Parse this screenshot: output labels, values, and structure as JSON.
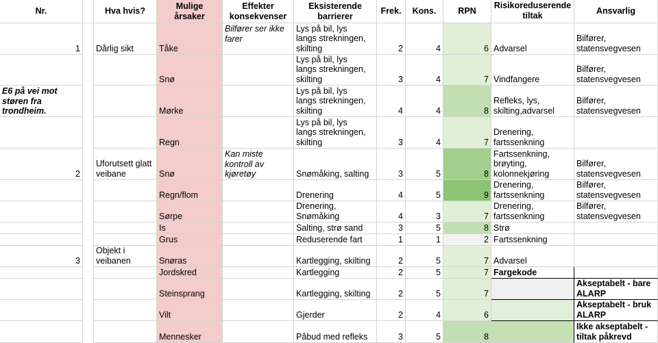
{
  "headers": {
    "nr": "Nr.",
    "hva_hvis": "Hva hvis?",
    "arsaker": "Mulige\nårsaker",
    "effekter": "Effekter\nkonsekvenser",
    "barrierer": "Eksisterende\nbarrierer",
    "frek": "Frek.",
    "kons": "Kons.",
    "rpn": "RPN",
    "tiltak": "Risikoreduserende\ntiltak",
    "ansvarlig": "Ansvarlig"
  },
  "context_label": "E6 på vei mot\nstøren fra\ntrondheim.",
  "groups": [
    {
      "nr": "1",
      "hva_hvis": "Dårlig sikt",
      "effekt": "Bilfører ser ikke\nfarer"
    },
    {
      "nr": "2",
      "hva_hvis": "Uforutsett glatt\nveibane",
      "effekt": "Kan miste\nkontroll av\nkjøretøy"
    },
    {
      "nr": "3",
      "hva_hvis": "Objekt i\nveibanen",
      "effekt": ""
    }
  ],
  "rows": [
    {
      "arsak": "Tåke",
      "barriere": "Lys på bil, lys\nlangs strekningen,\nskilting",
      "frek": "2",
      "kons": "4",
      "rpn": "6",
      "tiltak": "Advarsel",
      "ansvarlig": "Bilfører,\nstatensvegvesen"
    },
    {
      "arsak": "Snø",
      "barriere": "Lys på bil, lys\nlangs strekningen,\nskilting",
      "frek": "3",
      "kons": "4",
      "rpn": "7",
      "tiltak": "Vindfangere",
      "ansvarlig": "Bilfører,\nstatensvegvesen"
    },
    {
      "arsak": "Mørke",
      "barriere": "Lys på bil, lys\nlangs strekningen,\nskilting",
      "frek": "4",
      "kons": "4",
      "rpn": "8",
      "tiltak": "Refleks, lys,\nskilting,advarsel",
      "ansvarlig": "Bilfører,\nstatensvegvesen"
    },
    {
      "arsak": "Regn",
      "barriere": "Lys på bil, lys\nlangs strekningen,\nskilting",
      "frek": "3",
      "kons": "4",
      "rpn": "7",
      "tiltak": "Drenering,\nfartssenkning",
      "ansvarlig": ""
    },
    {
      "arsak": "Snø",
      "barriere": "Snømåking, salting",
      "frek": "3",
      "kons": "5",
      "rpn": "8",
      "tiltak": "Fartssenkning,\nbrøyting,\nkolonnekjøring",
      "ansvarlig": "Bilfører,\nstatensvegvesen"
    },
    {
      "arsak": "Regn/flom",
      "barriere": "Drenering",
      "frek": "4",
      "kons": "5",
      "rpn": "9",
      "tiltak": "Drenering,\nfartssenkning",
      "ansvarlig": "Bilfører,\nstatensvegvesen"
    },
    {
      "arsak": "Sørpe",
      "barriere": "Drenering,\nSnømåking",
      "frek": "4",
      "kons": "3",
      "rpn": "7",
      "tiltak": "Drenering,\nfartssenkning",
      "ansvarlig": "Bilfører,\nstatensvegvesen"
    },
    {
      "arsak": "Is",
      "barriere": "Salting, strø sand",
      "frek": "3",
      "kons": "5",
      "rpn": "8",
      "tiltak": "Strø",
      "ansvarlig": ""
    },
    {
      "arsak": "Grus",
      "barriere": "Reduserende fart",
      "frek": "1",
      "kons": "1",
      "rpn": "2",
      "tiltak": "Fartssenkning",
      "ansvarlig": ""
    },
    {
      "arsak": "Snøras",
      "barriere": "Kartlegging, skilting",
      "frek": "2",
      "kons": "5",
      "rpn": "7",
      "tiltak": "Advarsel",
      "ansvarlig": ""
    },
    {
      "arsak": "Jordskred",
      "barriere": "Kartlegging",
      "frek": "2",
      "kons": "5",
      "rpn": "7",
      "tiltak": "Fargekode",
      "ansvarlig": ""
    },
    {
      "arsak": "Steinsprang",
      "barriere": "Kartlegging, skilting",
      "frek": "2",
      "kons": "5",
      "rpn": "7",
      "tiltak": "",
      "ansvarlig": "Akseptabelt - bare\nALARP"
    },
    {
      "arsak": "Vilt",
      "barriere": "Gjerder",
      "frek": "2",
      "kons": "4",
      "rpn": "6",
      "tiltak": "",
      "ansvarlig": "Akseptabelt - bruk\nALARP"
    },
    {
      "arsak": "Mennesker",
      "barriere": "Påbud med refleks",
      "frek": "3",
      "kons": "5",
      "rpn": "8",
      "tiltak": "",
      "ansvarlig": "Ikke akseptabelt -\ntiltak påkrevd"
    }
  ],
  "colors": {
    "cause_column": "#f4cccc",
    "rpn_6": "#e1efd7",
    "rpn_7": "#c1dfb3",
    "rpn_8": "#a2cf8d",
    "rpn_9": "#8dc374",
    "rpn_2": "#f3f3f3",
    "legend_acceptable": "#f0f0f0",
    "legend_alarp": "#e2efda",
    "legend_not_acceptable": "#c6e0b4"
  }
}
